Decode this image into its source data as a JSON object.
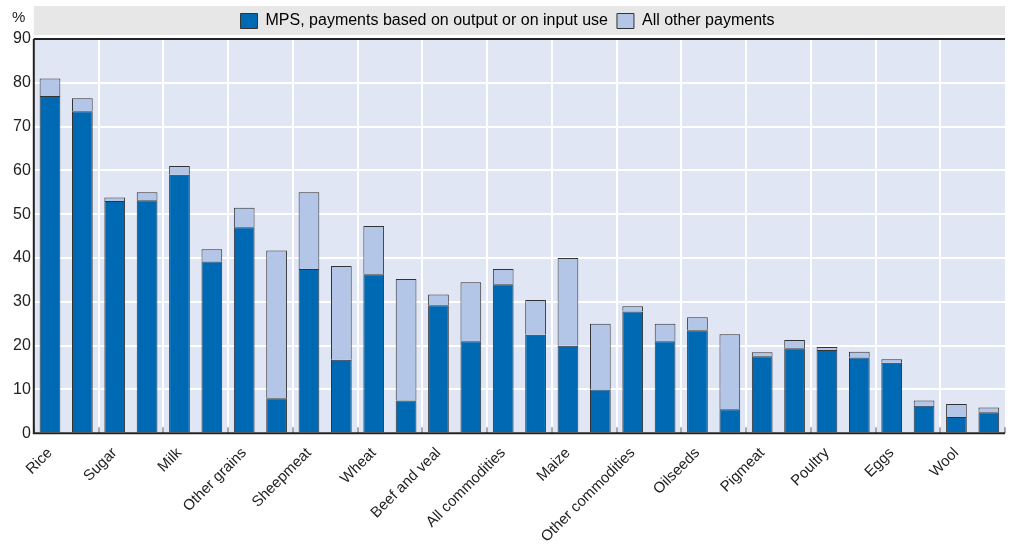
{
  "chart_data": {
    "type": "bar",
    "ylabel": "%",
    "stacked": true,
    "categories": [
      "Rice",
      null,
      "Sugar",
      null,
      "Milk",
      null,
      "Other grains",
      null,
      "Sheepmeat",
      null,
      "Wheat",
      null,
      "Beef and veal",
      null,
      "All commodities",
      null,
      "Maize",
      null,
      "Other commodities",
      null,
      "Oilseeds",
      null,
      "Pigmeat",
      null,
      "Poultry",
      null,
      "Eggs",
      null,
      "Wool",
      null
    ],
    "series": [
      {
        "name": "MPS, payments based on output or on input use",
        "color": "#0069b4",
        "values": [
          77,
          73.5,
          53,
          53.2,
          59,
          39.2,
          47,
          8,
          37.5,
          16.8,
          36.3,
          7.5,
          29.2,
          21,
          34,
          22.5,
          20,
          10,
          27.8,
          21,
          23.5,
          5.5,
          17.6,
          19.4,
          19,
          17.3,
          16.1,
          6.3,
          3.7,
          4.8
        ]
      },
      {
        "name": "All other payments",
        "color": "#b3c6e7",
        "values": [
          4,
          3,
          0.8,
          1.8,
          2,
          2.8,
          4.5,
          33.7,
          17.5,
          21.4,
          11,
          27.7,
          2.5,
          13.5,
          3.5,
          7.9,
          20,
          15,
          1.2,
          4,
          3,
          17.1,
          0.9,
          1.9,
          0.7,
          1.3,
          0.8,
          1.2,
          3,
          1.1
        ]
      }
    ],
    "ylim": [
      0,
      90
    ],
    "yticks": [
      0,
      10,
      20,
      30,
      40,
      50,
      60,
      70,
      80,
      90
    ],
    "grid": true,
    "legend": "top"
  }
}
